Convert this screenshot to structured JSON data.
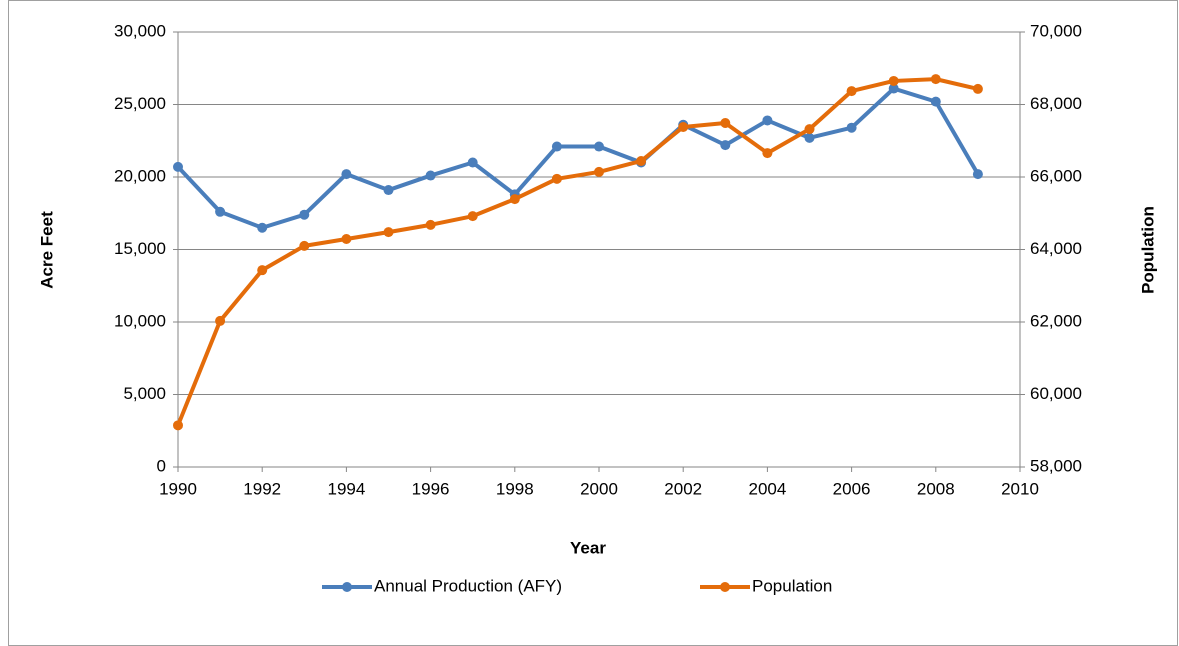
{
  "chart_data": {
    "type": "line",
    "x_label": "Year",
    "y_label": "Acre Feet",
    "y2_label": "Population",
    "x": [
      1990,
      1991,
      1992,
      1993,
      1994,
      1995,
      1996,
      1997,
      1998,
      1999,
      2000,
      2001,
      2002,
      2003,
      2004,
      2005,
      2006,
      2007,
      2008,
      2009
    ],
    "series": [
      {
        "name": "Annual Production (AFY)",
        "color": "#4a7ebb",
        "values": [
          20700,
          17600,
          16500,
          17400,
          20200,
          19100,
          20100,
          21000,
          18800,
          22100,
          22100,
          21000,
          23600,
          22200,
          23900,
          22700,
          23400,
          26100,
          25200,
          20200
        ]
      },
      {
        "name": "Population",
        "color": "#e46c0a",
        "axis": "y2",
        "values": [
          59150,
          62030,
          63430,
          64100,
          64290,
          64480,
          64680,
          64920,
          65390,
          65950,
          66140,
          66440,
          67380,
          67490,
          66660,
          67320,
          68370,
          68650,
          68700,
          68430
        ]
      }
    ],
    "xlim": [
      1990,
      2010
    ],
    "xticks": [
      1990,
      1992,
      1994,
      1996,
      1998,
      2000,
      2002,
      2004,
      2006,
      2008,
      2010
    ],
    "ylim": [
      0,
      30000
    ],
    "yticks": [
      0,
      {
        "value": 5000,
        "label": "5,000"
      },
      {
        "value": 10000,
        "label": "10,000"
      },
      {
        "value": 15000,
        "label": "15,000"
      },
      {
        "value": 20000,
        "label": "20,000"
      },
      {
        "value": 25000,
        "label": "25,000"
      },
      {
        "value": 30000,
        "label": "30,000"
      }
    ],
    "y2lim": [
      58000,
      70000
    ],
    "y2ticks": [
      {
        "value": 58000,
        "label": "58,000"
      },
      {
        "value": 60000,
        "label": "60,000"
      },
      {
        "value": 62000,
        "label": "62,000"
      },
      {
        "value": 64000,
        "label": "64,000"
      },
      {
        "value": 66000,
        "label": "66,000"
      },
      {
        "value": 68000,
        "label": "68,000"
      },
      {
        "value": 70000,
        "label": "70,000"
      }
    ],
    "grid": true,
    "legend": "bottom"
  }
}
